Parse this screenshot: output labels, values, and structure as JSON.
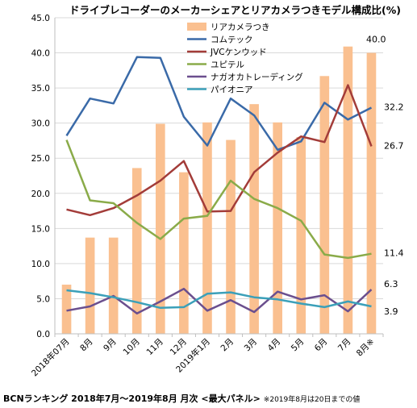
{
  "chart_data": {
    "type": "bar",
    "title": "ドライブレコーダーのメーカーシェアとリアカメラつきモデル構成比(%)",
    "footer_main": "BCNランキング 2018年7月～2019年8月 月次 <最大パネル>",
    "footer_note": "※2019年8月は20日までの値",
    "categories": [
      "2018年07月",
      "8月",
      "9月",
      "10月",
      "11月",
      "12月",
      "2019年1月",
      "2月",
      "3月",
      "4月",
      "5月",
      "6月",
      "7月",
      "8月※"
    ],
    "ylim": [
      0,
      45
    ],
    "yticks": [
      "0.0",
      "5.0",
      "10.0",
      "15.0",
      "20.0",
      "25.0",
      "30.0",
      "35.0",
      "40.0",
      "45.0"
    ],
    "bar_series": {
      "name": "リアカメラつき",
      "color": "#fac090",
      "values": [
        7.0,
        13.7,
        13.7,
        23.6,
        29.9,
        23.0,
        30.1,
        27.6,
        32.7,
        30.1,
        28.0,
        36.7,
        40.9,
        40.0
      ]
    },
    "line_series": [
      {
        "name": "コムテック",
        "color": "#3a6aa8",
        "values": [
          28.2,
          33.5,
          32.8,
          39.4,
          39.3,
          30.9,
          26.8,
          33.5,
          31.1,
          26.2,
          27.4,
          32.9,
          30.5,
          32.2
        ]
      },
      {
        "name": "JVCケンウッド",
        "color": "#a33c39",
        "values": [
          17.7,
          16.9,
          17.9,
          19.7,
          21.8,
          24.6,
          17.4,
          17.5,
          23.0,
          25.8,
          28.1,
          27.3,
          35.4,
          26.7
        ]
      },
      {
        "name": "ユピテル",
        "color": "#8aab49",
        "values": [
          27.6,
          19.0,
          18.6,
          15.8,
          13.5,
          16.4,
          16.8,
          21.8,
          19.2,
          17.9,
          16.1,
          11.3,
          10.8,
          11.4
        ]
      },
      {
        "name": "ナガオカトレーディング",
        "color": "#6b4f8e",
        "values": [
          3.3,
          3.9,
          5.4,
          2.9,
          4.6,
          6.4,
          3.3,
          4.8,
          3.1,
          6.0,
          4.9,
          5.5,
          3.2,
          6.3
        ]
      },
      {
        "name": "パイオニア",
        "color": "#3ba0b9",
        "values": [
          6.2,
          5.8,
          5.2,
          4.5,
          3.7,
          3.8,
          5.7,
          5.9,
          5.2,
          4.9,
          4.3,
          3.8,
          4.6,
          3.9
        ]
      }
    ],
    "end_labels": [
      {
        "text": "40.0",
        "value": 40.0
      },
      {
        "text": "32.2",
        "value": 32.2
      },
      {
        "text": "26.7",
        "value": 26.7
      },
      {
        "text": "11.4",
        "value": 11.4
      },
      {
        "text": "6.3",
        "value": 6.3
      },
      {
        "text": "3.9",
        "value": 3.9
      }
    ],
    "grid": true,
    "legend_position": "top-right"
  }
}
